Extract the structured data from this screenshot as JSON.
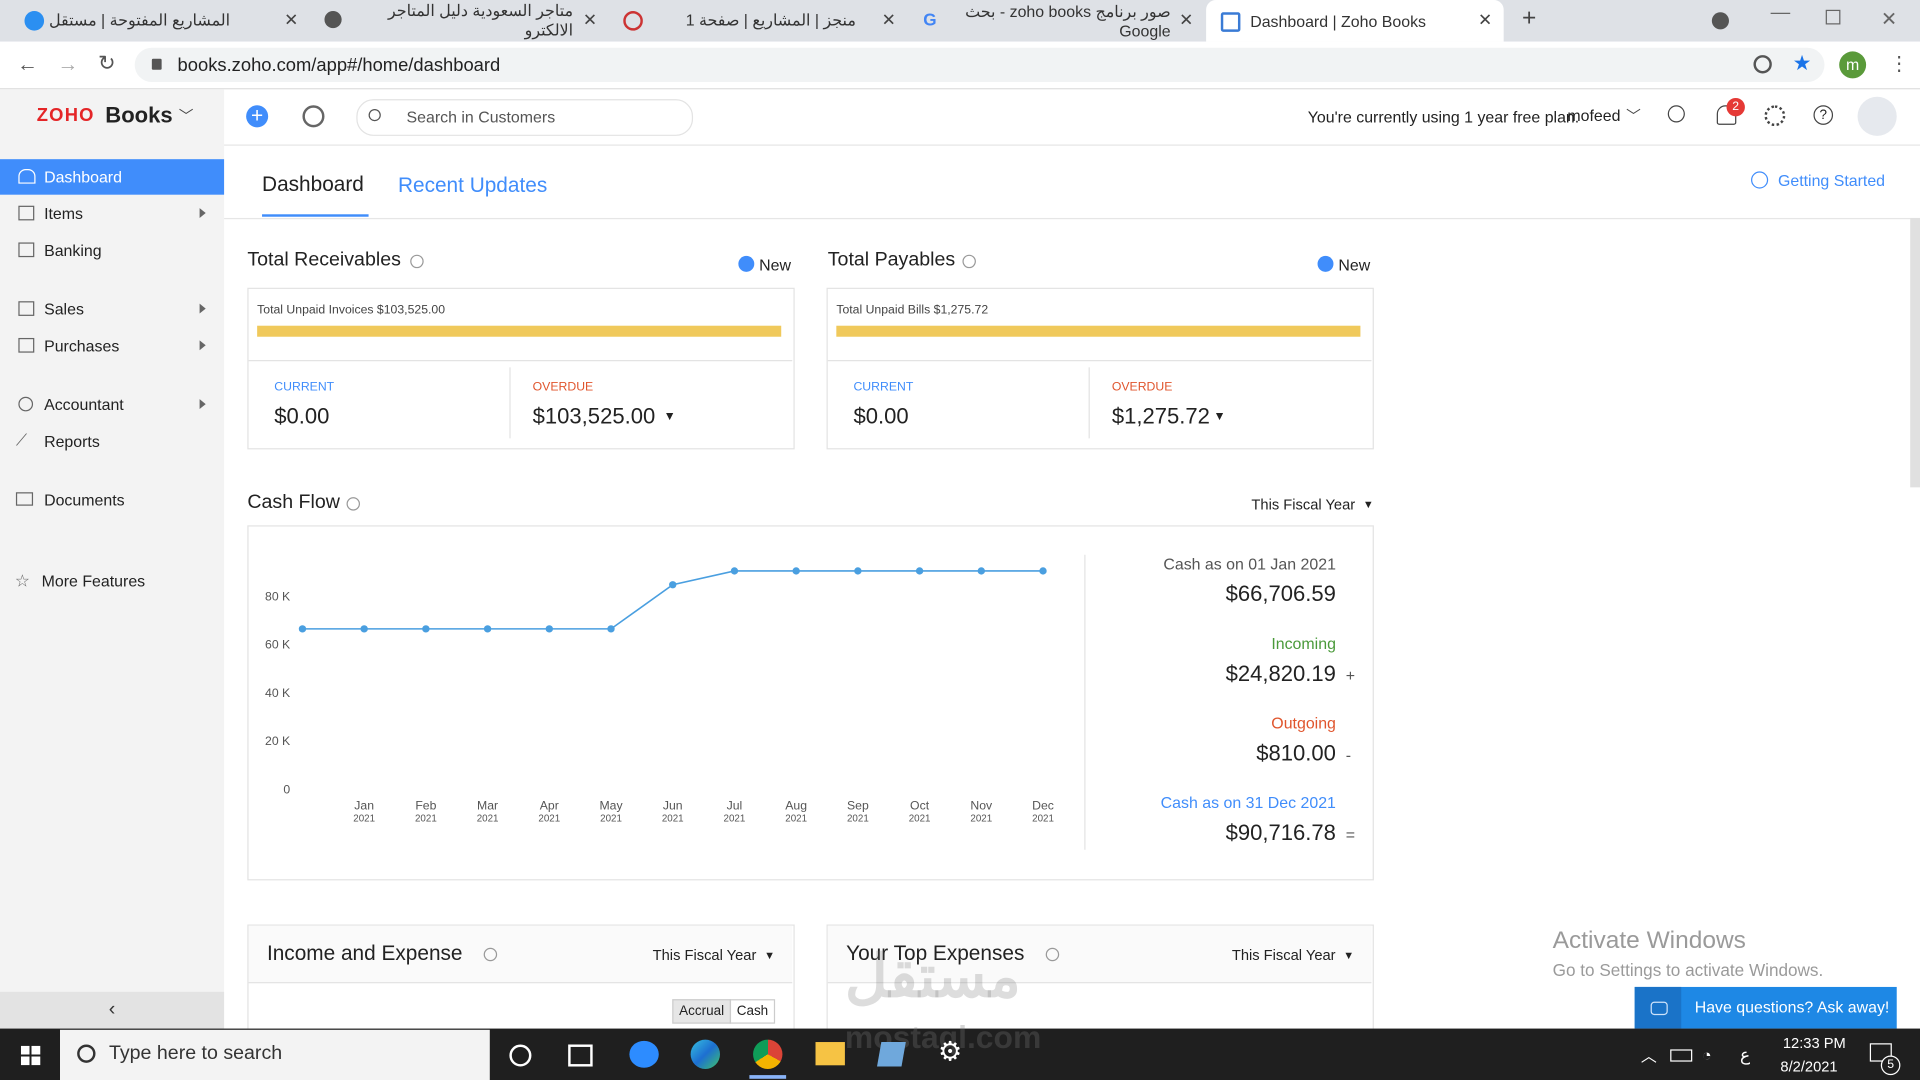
{
  "browser": {
    "tabs": [
      "المشاريع المفتوحة | مستقل",
      "متاجر السعودية دليل المتاجر الالكترو",
      "منجز | المشاريع | صفحة 1",
      "صور برنامج zoho books - بحث Google",
      "Dashboard | Zoho Books"
    ],
    "url": "books.zoho.com/app#/home/dashboard",
    "profile": "m"
  },
  "header": {
    "logo": "ZOHO",
    "product": "Books",
    "search": "Search in Customers",
    "plan": "You're currently using 1 year free plan.",
    "user": "mofeed",
    "notifications": "2"
  },
  "sidebar": [
    "Dashboard",
    "Items",
    "Banking",
    "Sales",
    "Purchases",
    "Accountant",
    "Reports",
    "Documents",
    "More Features"
  ],
  "tabs": {
    "items": [
      "Dashboard",
      "Recent Updates"
    ],
    "getting_started": "Getting Started"
  },
  "receivables": {
    "title": "Total Receivables",
    "new": "New",
    "unpaid": "Total Unpaid Invoices $103,525.00",
    "current_label": "CURRENT",
    "current": "$0.00",
    "overdue_label": "OVERDUE",
    "overdue": "$103,525.00"
  },
  "payables": {
    "title": "Total Payables",
    "new": "New",
    "unpaid": "Total Unpaid Bills $1,275.72",
    "current_label": "CURRENT",
    "current": "$0.00",
    "overdue_label": "OVERDUE",
    "overdue": "$1,275.72"
  },
  "cash_flow": {
    "title": "Cash Flow",
    "period": "This Fiscal Year",
    "summary": [
      {
        "label": "Cash as on 01 Jan 2021",
        "value": "$66,706.59",
        "sign": ""
      },
      {
        "label": "Incoming",
        "value": "$24,820.19",
        "sign": "+"
      },
      {
        "label": "Outgoing",
        "value": "$810.00",
        "sign": "-"
      },
      {
        "label": "Cash as on 31 Dec 2021",
        "value": "$90,716.78",
        "sign": "="
      }
    ]
  },
  "chart_data": {
    "type": "line",
    "categories": [
      null,
      "Jan 2021",
      "Feb 2021",
      "Mar 2021",
      "Apr 2021",
      "May 2021",
      "Jun 2021",
      "Jul 2021",
      "Aug 2021",
      "Sep 2021",
      "Oct 2021",
      "Nov 2021",
      "Dec 2021"
    ],
    "series": [
      {
        "name": "Cash",
        "color": "#4a9fe0",
        "values": [
          66707,
          66707,
          66707,
          66707,
          66707,
          66707,
          85000,
          90717,
          90717,
          90717,
          90717,
          90717,
          90717
        ]
      }
    ],
    "ylim": [
      0,
      100000
    ],
    "yticks": [
      0,
      {
        "value": 20000,
        "label": "20 K"
      },
      {
        "value": 40000,
        "label": "40 K"
      },
      {
        "value": 60000,
        "label": "60 K"
      },
      {
        "value": 80000,
        "label": "80 K"
      }
    ],
    "grid": false
  },
  "income_expense": {
    "title": "Income and Expense",
    "period": "This Fiscal Year",
    "toggle": [
      "Accrual",
      "Cash"
    ]
  },
  "top_expenses": {
    "title": "Your Top Expenses",
    "period": "This Fiscal Year"
  },
  "watermark": {
    "title": "Activate Windows",
    "text": "Go to Settings to activate Windows.",
    "site_ar": "مستقل",
    "site": "mostaql.com"
  },
  "chat": "Have questions? Ask away!",
  "taskbar": {
    "search": "Type here to search",
    "time": "12:33 PM",
    "date": "8/2/2021",
    "lang": "ع",
    "notifications": "5"
  }
}
